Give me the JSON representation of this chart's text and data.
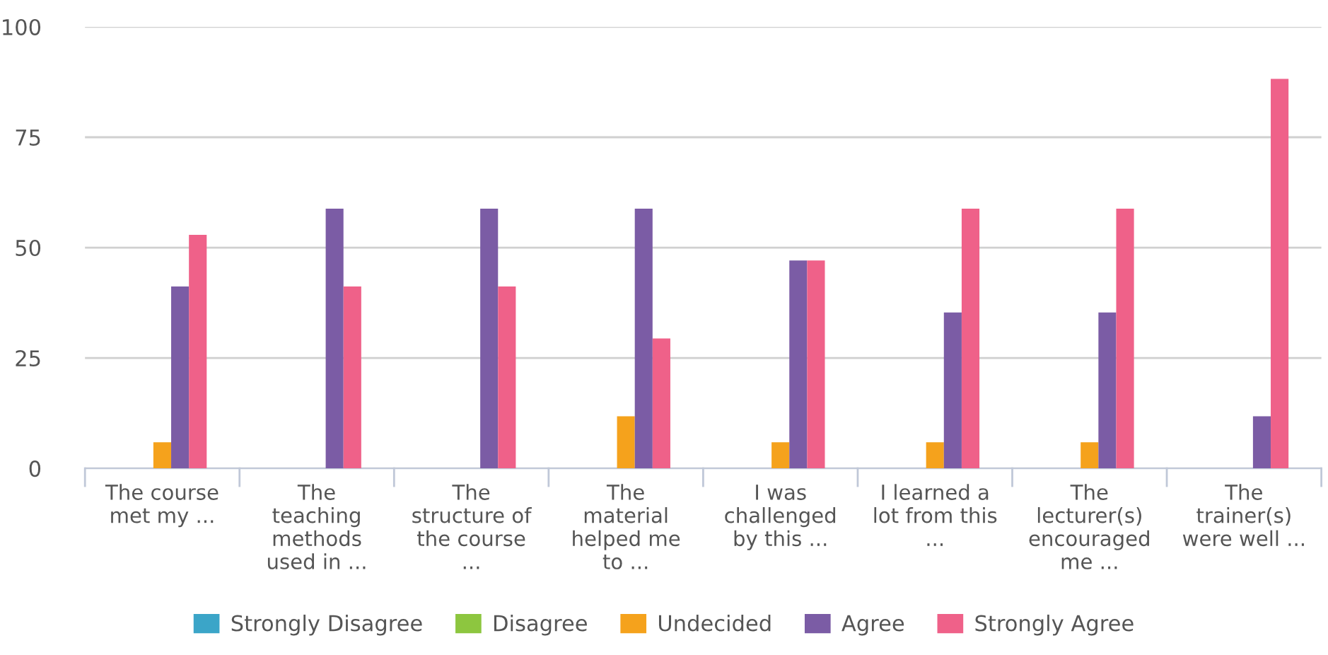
{
  "chart_data": {
    "type": "bar",
    "categories": [
      "The course\nmet my ...",
      "The\nteaching\nmethods\nused in ...",
      "The\nstructure of\nthe course\n...",
      "The\nmaterial\nhelped me\nto ...",
      "I was\nchallenged\nby this ...",
      "I learned a\nlot from this\n...",
      "The\nlecturer(s)\nencouraged\nme ...",
      "The\ntrainer(s)\nwere well ..."
    ],
    "series": [
      {
        "name": "Strongly Disagree",
        "color": "#3ba5c8",
        "values": [
          0,
          0,
          0,
          0,
          0,
          0,
          0,
          0
        ]
      },
      {
        "name": "Disagree",
        "color": "#8dc63f",
        "values": [
          0,
          0,
          0,
          0,
          0,
          0,
          0,
          0
        ]
      },
      {
        "name": "Undecided",
        "color": "#f5a21c",
        "values": [
          5.9,
          0,
          0,
          11.8,
          5.9,
          5.9,
          5.9,
          0
        ]
      },
      {
        "name": "Agree",
        "color": "#7b5ca5",
        "values": [
          41.2,
          58.8,
          58.8,
          58.8,
          47.1,
          35.3,
          35.3,
          11.8
        ]
      },
      {
        "name": "Strongly Agree",
        "color": "#ef6189",
        "values": [
          52.9,
          41.2,
          41.2,
          29.4,
          47.1,
          58.8,
          58.8,
          88.2
        ]
      }
    ],
    "ylim": [
      0,
      100
    ],
    "yticks": [
      0,
      25,
      50,
      75,
      100
    ],
    "grid": "y",
    "legend": "bottom"
  }
}
